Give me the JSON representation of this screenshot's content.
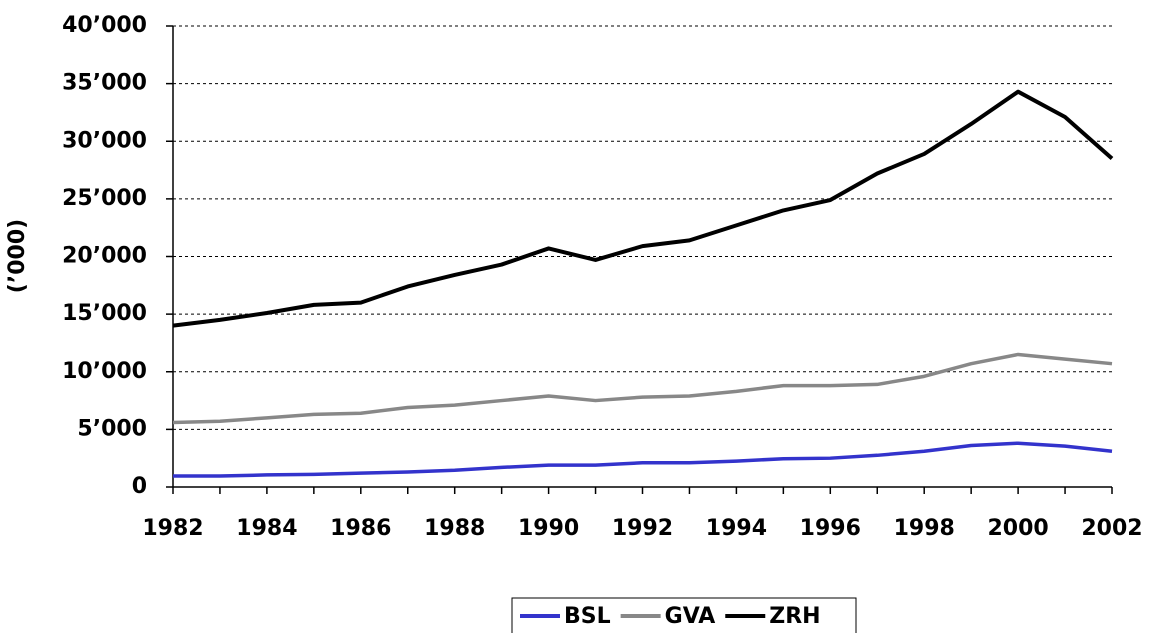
{
  "chart_data": {
    "type": "line",
    "y_label": "(’000)",
    "x": [
      1982,
      1983,
      1984,
      1985,
      1986,
      1987,
      1988,
      1989,
      1990,
      1991,
      1992,
      1993,
      1994,
      1995,
      1996,
      1997,
      1998,
      1999,
      2000,
      2001,
      2002
    ],
    "series": [
      {
        "name": "BSL",
        "color": "#3333cc",
        "values": [
          950,
          950,
          1050,
          1100,
          1200,
          1300,
          1450,
          1700,
          1900,
          1900,
          2100,
          2100,
          2250,
          2450,
          2500,
          2750,
          3100,
          3600,
          3800,
          3550,
          3100
        ]
      },
      {
        "name": "GVA",
        "color": "#888888",
        "values": [
          5600,
          5700,
          6000,
          6300,
          6400,
          6900,
          7100,
          7500,
          7900,
          7500,
          7800,
          7900,
          8300,
          8800,
          8800,
          8900,
          9600,
          10700,
          11500,
          11100,
          10700
        ]
      },
      {
        "name": "ZRH",
        "color": "#000000",
        "values": [
          14000,
          14500,
          15100,
          15800,
          16000,
          17400,
          18400,
          19300,
          20700,
          19700,
          20900,
          21400,
          22700,
          24000,
          24900,
          27200,
          28900,
          31500,
          34300,
          32100,
          28500
        ]
      }
    ],
    "xlim": [
      1982,
      2002
    ],
    "xticks": [
      1982,
      1984,
      1986,
      1988,
      1990,
      1992,
      1994,
      1996,
      1998,
      2000,
      2002
    ],
    "ylim": [
      0,
      40000
    ],
    "yticks": [
      0,
      {
        "value": 5000,
        "label": "5’000"
      },
      {
        "value": 10000,
        "label": "10’000"
      },
      {
        "value": 15000,
        "label": "15’000"
      },
      {
        "value": 20000,
        "label": "20’000"
      },
      {
        "value": 25000,
        "label": "25’000"
      },
      {
        "value": 30000,
        "label": "30’000"
      },
      {
        "value": 35000,
        "label": "35’000"
      },
      {
        "value": 40000,
        "label": "40’000"
      }
    ],
    "grid": true,
    "legend": "bottom"
  }
}
